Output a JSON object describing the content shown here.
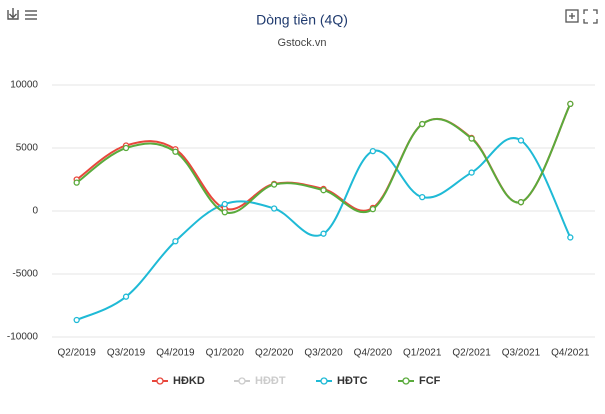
{
  "chart_data": {
    "type": "line",
    "title": "Dòng tiền (4Q)",
    "subtitle": "Gstock.vn",
    "categories": [
      "Q2/2019",
      "Q3/2019",
      "Q4/2019",
      "Q1/2020",
      "Q2/2020",
      "Q3/2020",
      "Q4/2020",
      "Q1/2021",
      "Q2/2021",
      "Q3/2021",
      "Q4/2021"
    ],
    "series": [
      {
        "name": "HĐKD",
        "color": "#e8473c",
        "values": [
          2500,
          5200,
          4900,
          200,
          2150,
          1750,
          250,
          6900,
          5800,
          700,
          8500
        ]
      },
      {
        "name": "HĐĐT",
        "color": "#cccccc",
        "hidden": true,
        "values": [
          null,
          null,
          null,
          null,
          null,
          null,
          null,
          null,
          null,
          null,
          null
        ]
      },
      {
        "name": "HĐTC",
        "color": "#1fbad6",
        "values": [
          -8650,
          -6800,
          -2400,
          550,
          200,
          -1800,
          4750,
          1100,
          3050,
          5600,
          -2100
        ]
      },
      {
        "name": "FCF",
        "color": "#5aab3c",
        "values": [
          2250,
          5000,
          4700,
          -100,
          2100,
          1650,
          150,
          6900,
          5750,
          700,
          8500
        ]
      }
    ],
    "ylim": [
      -10000,
      10000
    ],
    "yticks": [
      -10000,
      -5000,
      0,
      5000,
      10000
    ],
    "grid": true,
    "legend": "bottom"
  }
}
